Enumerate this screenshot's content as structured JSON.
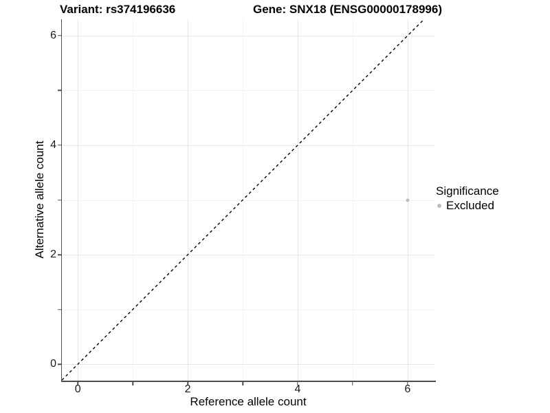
{
  "chart_data": {
    "type": "scatter",
    "title_left": "Variant: rs374196636",
    "title_right": "Gene: SNX18 (ENSG00000178996)",
    "xlabel": "Reference allele count",
    "ylabel": "Alternative allele count",
    "xlim": [
      -0.29,
      6.49
    ],
    "ylim": [
      -0.3,
      6.3
    ],
    "x_major_ticks": [
      0,
      2,
      4,
      6
    ],
    "x_minor_ticks": [
      1,
      3,
      5
    ],
    "y_major_ticks": [
      0,
      2,
      4,
      6
    ],
    "y_minor_ticks": [
      1,
      3,
      5
    ],
    "grid": true,
    "identity_line": {
      "style": "dashed",
      "slope": 1,
      "intercept": 0,
      "color": "#000000"
    },
    "series": [
      {
        "name": "Excluded",
        "color": "#bdbdbd",
        "points": [
          {
            "x": 6,
            "y": 3
          }
        ]
      }
    ],
    "legend": {
      "title": "Significance",
      "position": "right",
      "entries": [
        {
          "label": "Excluded",
          "color": "#bdbdbd"
        }
      ]
    },
    "style": {
      "axis_color": "#4d4d4d",
      "grid_major_color": "#e6e6e6",
      "grid_minor_color": "#f2f2f2",
      "point_color": "#bdbdbd"
    }
  }
}
